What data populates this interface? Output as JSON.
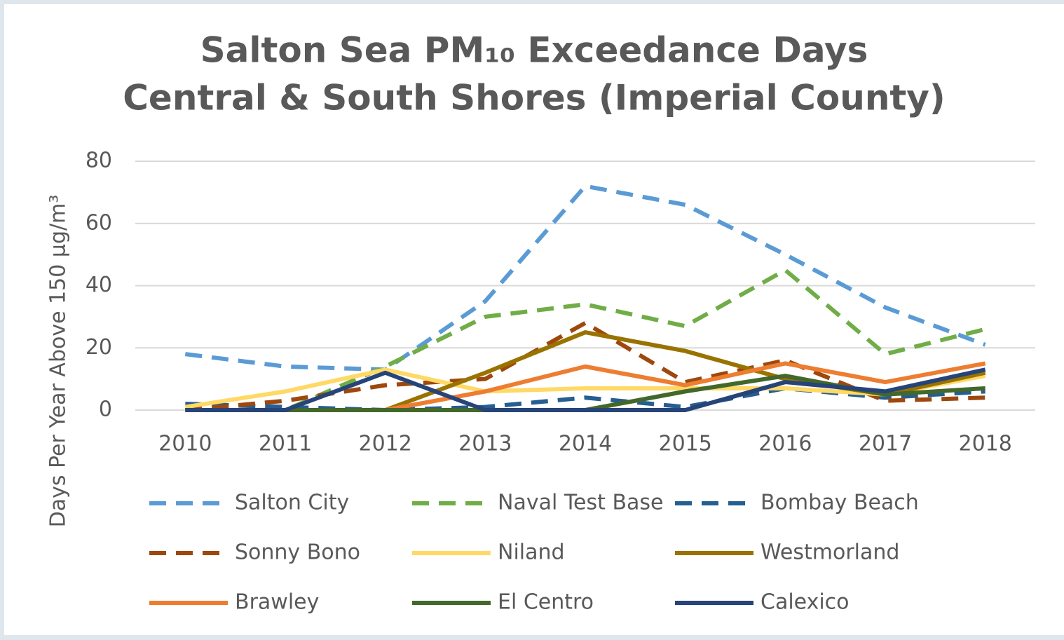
{
  "chart_data": {
    "type": "line",
    "title": "Salton Sea PM₁₀ Exceedance Days",
    "subtitle": "Central & South Shores (Imperial County)",
    "y_label": "Days Per Year Above 150 µg/m³",
    "categories": [
      "2010",
      "2011",
      "2012",
      "2013",
      "2014",
      "2015",
      "2016",
      "2017",
      "2018"
    ],
    "ylim": [
      0,
      80
    ],
    "yticks": [
      0,
      20,
      40,
      60,
      80
    ],
    "grid": true,
    "legend": "bottom",
    "series": [
      {
        "name": "Salton City",
        "color": "#5b9bd5",
        "dashed": true,
        "values": [
          18,
          14,
          13,
          35,
          72,
          66,
          50,
          33,
          21
        ]
      },
      {
        "name": "Naval Test Base",
        "color": "#70ad47",
        "dashed": true,
        "values": [
          0,
          0,
          14,
          30,
          34,
          27,
          45,
          18,
          26
        ]
      },
      {
        "name": "Bombay Beach",
        "color": "#255e91",
        "dashed": true,
        "values": [
          2,
          1,
          0,
          1,
          4,
          1,
          7,
          4,
          6
        ]
      },
      {
        "name": "Sonny Bono",
        "color": "#9e480e",
        "dashed": true,
        "values": [
          0,
          3,
          8,
          10,
          28,
          9,
          16,
          3,
          4
        ]
      },
      {
        "name": "Niland",
        "color": "#ffd966",
        "dashed": false,
        "values": [
          1,
          6,
          13,
          6,
          7,
          7,
          7,
          5,
          11
        ]
      },
      {
        "name": "Westmorland",
        "color": "#997300",
        "dashed": false,
        "values": [
          null,
          null,
          0,
          12,
          25,
          19,
          10,
          5,
          12
        ]
      },
      {
        "name": "Brawley",
        "color": "#ed7d31",
        "dashed": false,
        "values": [
          null,
          null,
          0,
          6,
          14,
          8,
          15,
          9,
          15
        ]
      },
      {
        "name": "El Centro",
        "color": "#43682b",
        "dashed": false,
        "values": [
          0,
          0,
          0,
          0,
          0,
          6,
          11,
          5,
          7
        ]
      },
      {
        "name": "Calexico",
        "color": "#264478",
        "dashed": false,
        "values": [
          0,
          0,
          12,
          0,
          0,
          0,
          9,
          6,
          13
        ]
      }
    ]
  }
}
